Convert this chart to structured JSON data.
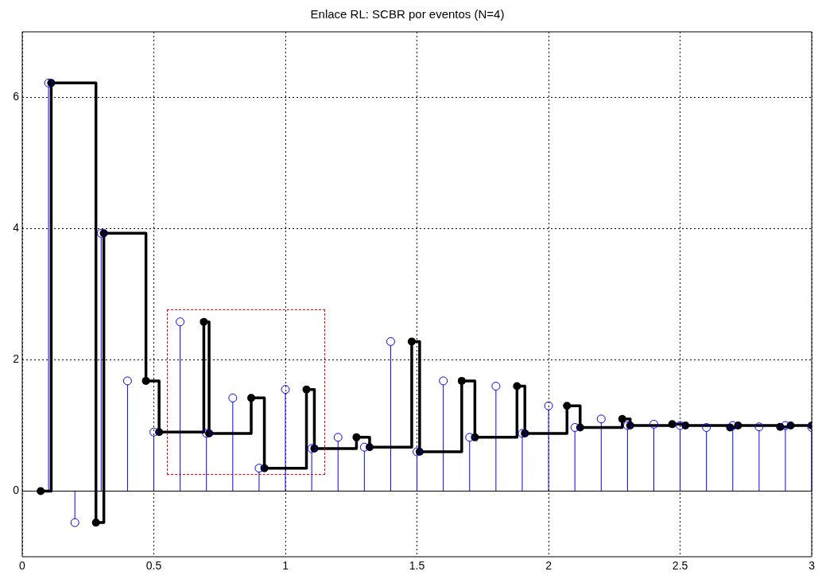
{
  "chart_data": {
    "type": "lollipop",
    "title": "Enlace RL: SCBR por eventos (N=4)",
    "xlim": [
      0,
      3
    ],
    "xticks": [
      0,
      0.5,
      1,
      1.5,
      2,
      2.5,
      3
    ],
    "ylim": [
      -1,
      7
    ],
    "yticks": [
      0,
      2,
      4,
      6
    ],
    "grid": true,
    "legend": false,
    "series": [
      {
        "color": "#0000ff",
        "marker": "circle",
        "x": [
          0.1,
          0.2,
          0.3,
          0.4,
          0.5,
          0.6,
          0.7,
          0.8,
          0.9,
          1.0,
          1.1,
          1.2,
          1.3,
          1.4,
          1.5,
          1.6,
          1.7,
          1.8,
          1.9,
          2.0,
          2.1,
          2.2,
          2.3,
          2.4,
          2.5,
          2.6,
          2.7,
          2.8,
          2.9,
          3.0
        ],
        "values": [
          6.22,
          -0.48,
          3.93,
          1.68,
          0.9,
          2.58,
          0.88,
          1.42,
          0.35,
          1.55,
          0.65,
          0.82,
          0.67,
          2.28,
          0.6,
          1.68,
          0.82,
          1.6,
          0.88,
          1.3,
          0.97,
          1.1,
          1.0,
          1.02,
          1.0,
          0.97,
          1.0,
          0.98,
          1.0,
          0.97
        ]
      },
      {
        "type": "step",
        "color": "#000000",
        "marker": "circle",
        "x": [
          0.07,
          0.11,
          0.28,
          0.31,
          0.47,
          0.52,
          0.69,
          0.71,
          0.87,
          0.92,
          1.08,
          1.11,
          1.27,
          1.32,
          1.48,
          1.51,
          1.67,
          1.72,
          1.88,
          1.91,
          2.07,
          2.12,
          2.28,
          2.31,
          2.47,
          2.52,
          2.69,
          2.72,
          2.88,
          2.92,
          3.0
        ],
        "values": [
          0,
          6.22,
          -0.48,
          3.93,
          1.68,
          0.9,
          2.58,
          0.88,
          1.42,
          0.35,
          1.55,
          0.65,
          0.82,
          0.67,
          2.28,
          0.6,
          1.68,
          0.82,
          1.6,
          0.88,
          1.3,
          0.97,
          1.1,
          1.0,
          1.02,
          1.0,
          0.97,
          1.0,
          0.98,
          1.0,
          1.0
        ]
      }
    ]
  }
}
